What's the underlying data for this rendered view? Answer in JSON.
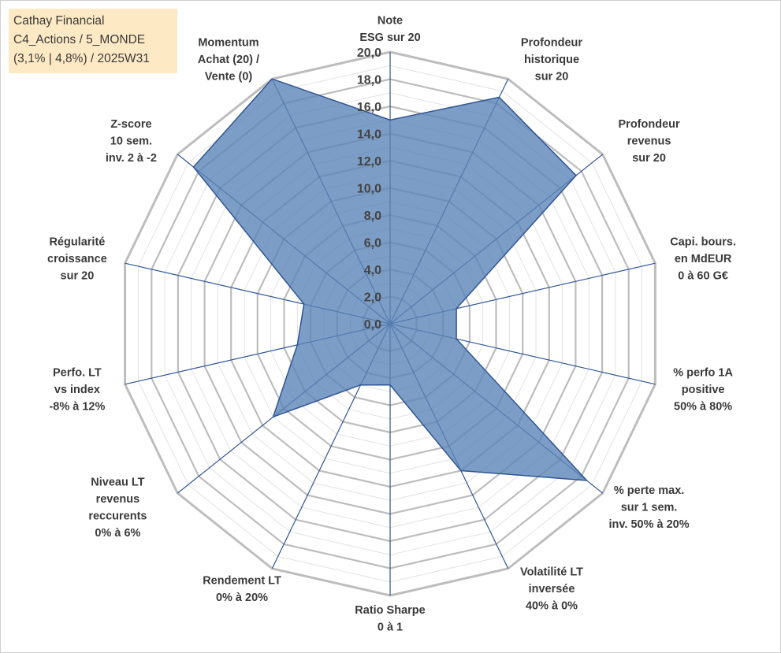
{
  "title_lines": [
    "Cathay Financial",
    "C4_Actions / 5_MONDE",
    "(3,1% | 4,8%) / 2025W31"
  ],
  "colors": {
    "series_fill": "#5b84b6",
    "series_line": "#2f5597",
    "spoke": "#2f5597",
    "gridline_major": "#bdbdbd",
    "gridline_minor": "#e2e2e2",
    "title_bg": "#fde9c4"
  },
  "chart_data": {
    "type": "radar",
    "range": [
      0,
      20
    ],
    "major_step": 2,
    "minor_step": 1,
    "grid": true,
    "tick_labels": [
      "0,0",
      "2,0",
      "4,0",
      "6,0",
      "8,0",
      "10,0",
      "12,0",
      "14,0",
      "16,0",
      "18,0",
      "20,0"
    ],
    "axes": [
      {
        "label": [
          "Note",
          "ESG sur 20"
        ],
        "value": 15.0
      },
      {
        "label": [
          "Profondeur",
          "historique",
          "sur 20"
        ],
        "value": 18.5
      },
      {
        "label": [
          "Profondeur",
          "revenus",
          "sur 20"
        ],
        "value": 17.5
      },
      {
        "label": [
          "Capi. bours.",
          "en MdEUR",
          "0 à 60 G€"
        ],
        "value": 5.0
      },
      {
        "label": [
          "% perfo 1A",
          "positive",
          "50% à 80%"
        ],
        "value": 5.0
      },
      {
        "label": [
          "% perte max.",
          "sur 1 sem.",
          "inv. 50% à 20%"
        ],
        "value": 18.5
      },
      {
        "label": [
          "Volatilité LT",
          "inversée",
          "40% à 0%"
        ],
        "value": 12.0
      },
      {
        "label": [
          "Ratio Sharpe",
          "0 à 1"
        ],
        "value": 4.5
      },
      {
        "label": [
          "Rendement LT",
          "0% à 20%"
        ],
        "value": 5.0
      },
      {
        "label": [
          "Niveau LT",
          "revenus",
          "reccurents",
          "0% à 6%"
        ],
        "value": 11.0
      },
      {
        "label": [
          "Perfo. LT",
          "vs index",
          "-8% à 12%"
        ],
        "value": 7.0
      },
      {
        "label": [
          "Régularité",
          "croissance",
          "sur 20"
        ],
        "value": 6.5
      },
      {
        "label": [
          "Z-score",
          "10 sem.",
          "inv. 2 à -2"
        ],
        "value": 18.5
      },
      {
        "label": [
          "Momentum",
          "Achat (20) /",
          "Vente (0)"
        ],
        "value": 20.0
      }
    ]
  }
}
